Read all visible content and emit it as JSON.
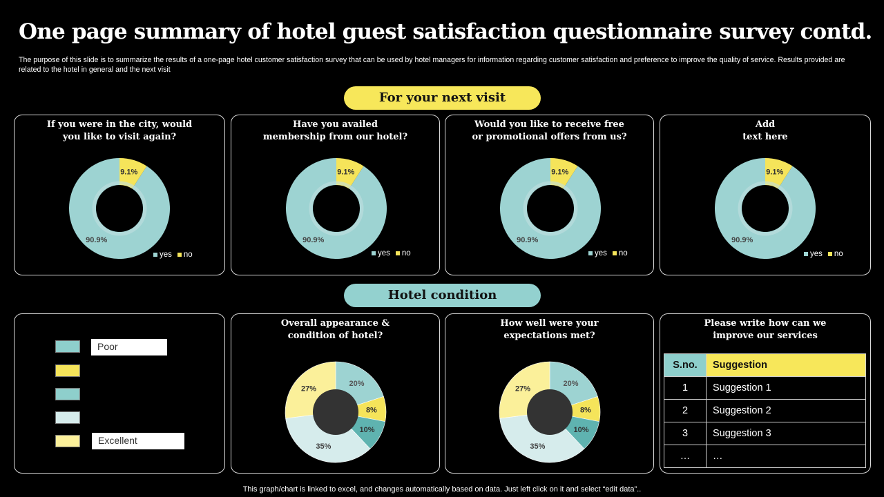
{
  "title": "One page summary of hotel guest satisfaction questionnaire survey contd.",
  "subtitle": "The purpose of this slide is to summarize the results of a one-page hotel customer satisfaction survey that can be used by hotel managers for information regarding customer satisfaction and preference to improve the quality of service. Results provided are related to the hotel in general and the next visit",
  "section_visit": "For your next visit",
  "section_condition": "Hotel condition",
  "colors": {
    "teal": "#9dd3d2",
    "yellow": "#f5e45a",
    "teal_dark": "#5fb3b0",
    "light_teal": "#d6ecec",
    "light_yellow": "#fbf09a",
    "black": "#000000"
  },
  "legend": {
    "yes": "yes",
    "no": "no"
  },
  "key": {
    "poor": "Poor",
    "excellent": "Excellent"
  },
  "table": {
    "headers": [
      "S.no.",
      "Suggestion"
    ],
    "rows": [
      [
        "1",
        "Suggestion 1"
      ],
      [
        "2",
        "Suggestion 2"
      ],
      [
        "3",
        "Suggestion 3"
      ],
      [
        "…",
        "…"
      ]
    ]
  },
  "suggestions_title": "Please write how can we\nimprove our services",
  "footer": "This graph/chart is linked to excel,  and changes automatically based on data. Just left click on it and select “edit data”..",
  "chart_data": [
    {
      "type": "pie",
      "title": "If you were in the city, would\nyou like to visit again?",
      "categories": [
        "yes",
        "no"
      ],
      "values": [
        90.9,
        9.1
      ],
      "labels": [
        "90.9%",
        "9.1%"
      ],
      "legend": "bottom-right"
    },
    {
      "type": "pie",
      "title": "Have you availed\nmembership from our hotel?",
      "categories": [
        "yes",
        "no"
      ],
      "values": [
        90.9,
        9.1
      ],
      "labels": [
        "90.9%",
        "9.1%"
      ],
      "legend": "bottom-right"
    },
    {
      "type": "pie",
      "title": "Would you like to receive free\nor promotional offers from us?",
      "categories": [
        "yes",
        "no"
      ],
      "values": [
        90.9,
        9.1
      ],
      "labels": [
        "90.9%",
        "9.1%"
      ],
      "legend": "bottom-right"
    },
    {
      "type": "pie",
      "title": "Add\ntext here",
      "categories": [
        "yes",
        "no"
      ],
      "values": [
        90.9,
        9.1
      ],
      "labels": [
        "90.9%",
        "9.1%"
      ],
      "legend": "bottom-right"
    },
    {
      "type": "pie",
      "title": "Overall appearance &\ncondition of hotel?",
      "values": [
        20,
        8,
        10,
        35,
        27
      ],
      "labels": [
        "20%",
        "8%",
        "10%",
        "35%",
        "27%"
      ]
    },
    {
      "type": "pie",
      "title": "How well were your\nexpectations met?",
      "values": [
        20,
        8,
        10,
        35,
        27
      ],
      "labels": [
        "20%",
        "8%",
        "10%",
        "35%",
        "27%"
      ]
    }
  ]
}
